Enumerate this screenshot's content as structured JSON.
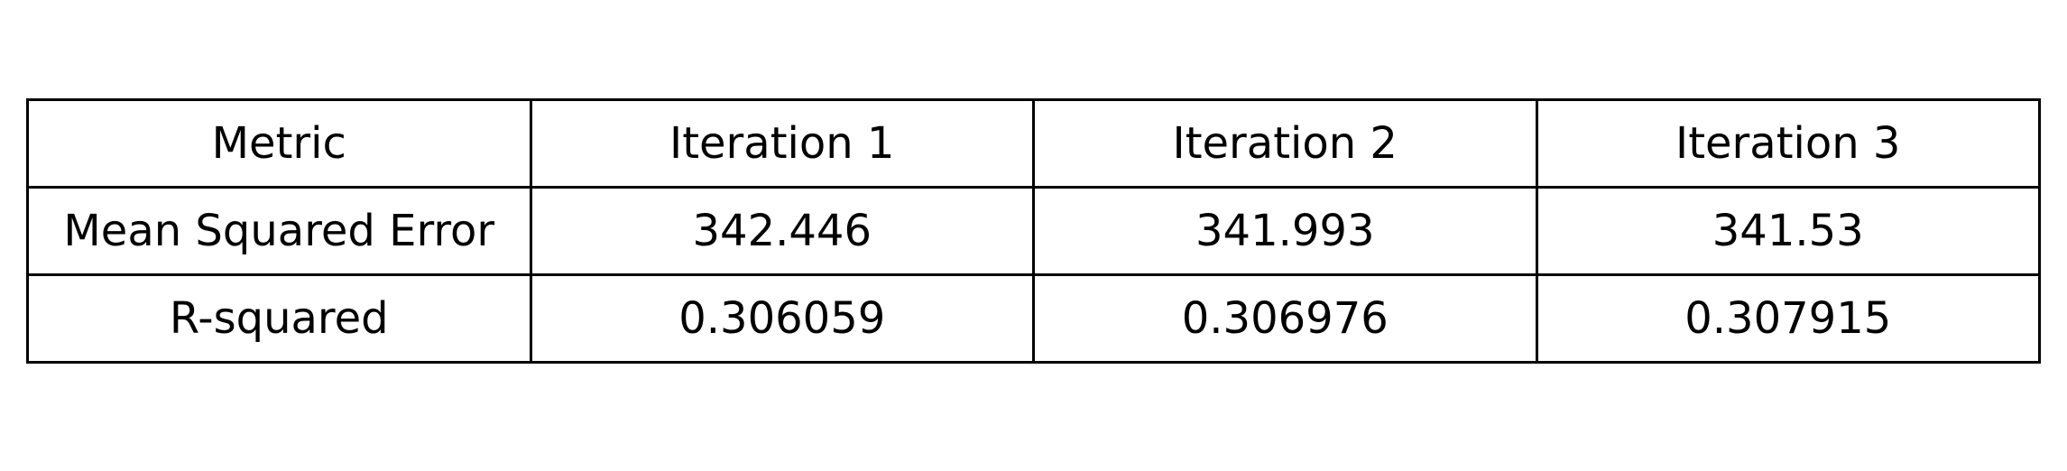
{
  "chart_data": {
    "type": "table",
    "columns": [
      "Metric",
      "Iteration 1",
      "Iteration 2",
      "Iteration 3"
    ],
    "rows": [
      [
        "Mean Squared Error",
        "342.446",
        "341.993",
        "341.53"
      ],
      [
        "R-squared",
        "0.306059",
        "0.306976",
        "0.307915"
      ]
    ]
  },
  "colors": {
    "border": "#000000",
    "text": "#000000",
    "background": "#ffffff"
  }
}
